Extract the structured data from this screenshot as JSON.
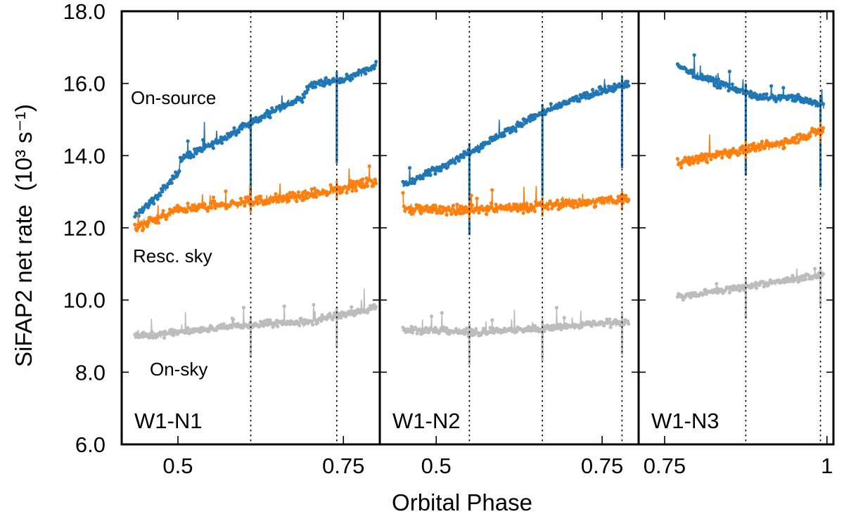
{
  "chart_data": {
    "type": "scatter",
    "xlabel": "Orbital Phase",
    "ylabel": "SiFAP2 net rate",
    "ylabel_units": "(10³ s⁻¹)",
    "ylim": [
      6.0,
      18.0
    ],
    "yticks": [
      "6.0",
      "8.0",
      "10.0",
      "12.0",
      "14.0",
      "16.0",
      "18.0"
    ],
    "colors": {
      "on_source": "#1f77b4",
      "resc_sky": "#ff7f0e",
      "on_sky": "#bcbcbc"
    },
    "series_labels": [
      "On-source",
      "Resc. sky",
      "On-sky"
    ],
    "panels": [
      {
        "name": "W1-N1",
        "xlim": [
          0.415,
          0.805
        ],
        "xticks": [
          0.5,
          0.75
        ],
        "xtick_labels": [
          "0.5",
          "0.75"
        ],
        "dips": [
          0.61,
          0.74
        ],
        "series": [
          {
            "name": "On-source",
            "x": [
              0.435,
              0.47,
              0.5,
              0.505,
              0.55,
              0.6,
              0.65,
              0.69,
              0.7,
              0.75,
              0.8
            ],
            "y": [
              12.3,
              12.9,
              13.5,
              13.9,
              14.3,
              14.8,
              15.3,
              15.6,
              16.0,
              16.1,
              16.5
            ]
          },
          {
            "name": "Resc. sky",
            "x": [
              0.435,
              0.5,
              0.6,
              0.7,
              0.8
            ],
            "y": [
              12.0,
              12.5,
              12.7,
              12.9,
              13.3
            ]
          },
          {
            "name": "On-sky",
            "x": [
              0.435,
              0.5,
              0.6,
              0.7,
              0.8
            ],
            "y": [
              9.0,
              9.1,
              9.3,
              9.4,
              9.8
            ]
          }
        ]
      },
      {
        "name": "W1-N2",
        "xlim": [
          0.415,
          0.805
        ],
        "xticks": [
          0.5,
          0.75
        ],
        "xtick_labels": [
          "0.5",
          "0.75"
        ],
        "dips": [
          0.55,
          0.66,
          0.78
        ],
        "series": [
          {
            "name": "On-source",
            "x": [
              0.45,
              0.5,
              0.55,
              0.6,
              0.65,
              0.7,
              0.75,
              0.79
            ],
            "y": [
              13.2,
              13.6,
              14.1,
              14.6,
              15.1,
              15.5,
              15.8,
              16.0
            ]
          },
          {
            "name": "Resc. sky",
            "x": [
              0.45,
              0.55,
              0.65,
              0.79
            ],
            "y": [
              12.5,
              12.5,
              12.6,
              12.8
            ]
          },
          {
            "name": "On-sky",
            "x": [
              0.45,
              0.55,
              0.65,
              0.79
            ],
            "y": [
              9.2,
              9.1,
              9.2,
              9.4
            ]
          }
        ]
      },
      {
        "name": "W1-N3",
        "xlim": [
          0.71,
          1.01
        ],
        "xticks": [
          0.75,
          1.0
        ],
        "xtick_labels": [
          "0.75",
          "1"
        ],
        "dips": [
          0.875,
          0.99
        ],
        "series": [
          {
            "name": "On-source",
            "x": [
              0.77,
              0.8,
              0.85,
              0.9,
              0.95,
              0.995
            ],
            "y": [
              16.5,
              16.2,
              15.9,
              15.6,
              15.6,
              15.4
            ]
          },
          {
            "name": "Resc. sky",
            "x": [
              0.77,
              0.85,
              0.92,
              0.995
            ],
            "y": [
              13.8,
              14.1,
              14.3,
              14.7
            ]
          },
          {
            "name": "On-sky",
            "x": [
              0.77,
              0.85,
              0.92,
              0.995
            ],
            "y": [
              10.1,
              10.3,
              10.5,
              10.7
            ]
          }
        ]
      }
    ]
  }
}
